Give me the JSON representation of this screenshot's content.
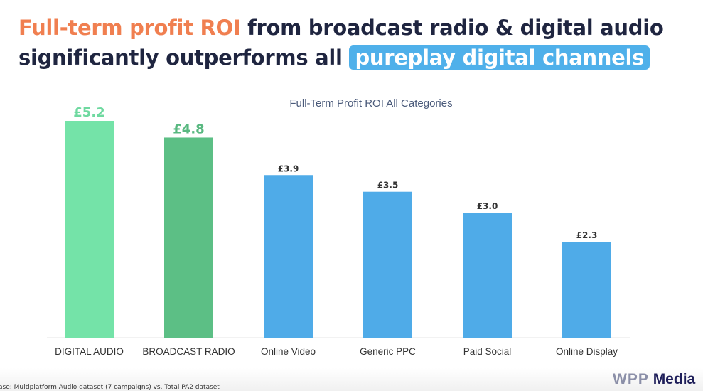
{
  "headline": {
    "accent": "Full-term profit ROI",
    "part1": " from broadcast radio & digital audio",
    "part2": "significantly outperforms all ",
    "highlight": "pureplay digital channels"
  },
  "colors": {
    "accent": "#f07f50",
    "text": "#1f2540",
    "highlight": "#4fb0ea",
    "digital_audio": "#74e3a8",
    "broadcast_radio": "#5cbf85",
    "digital_channels": "#4fabe8"
  },
  "chart_data": {
    "type": "bar",
    "title": "Full-Term Profit ROI All Categories",
    "categories": [
      "DIGITAL AUDIO",
      "BROADCAST RADIO",
      "Online Video",
      "Generic PPC",
      "Paid Social",
      "Online Display"
    ],
    "values": [
      5.2,
      4.8,
      3.9,
      3.5,
      3.0,
      2.3
    ],
    "data_labels": [
      "£5.2",
      "£4.8",
      "£3.9",
      "£3.5",
      "£3.0",
      "£2.3"
    ],
    "bar_colors": [
      "#74e3a8",
      "#5cbf85",
      "#4fabe8",
      "#4fabe8",
      "#4fabe8",
      "#4fabe8"
    ],
    "label_colors": [
      "#6fd9a0",
      "#58b880",
      "#333333",
      "#333333",
      "#333333",
      "#333333"
    ],
    "ylim": [
      0,
      5.2
    ],
    "grid": false,
    "xlabel": "",
    "ylabel": ""
  },
  "footnote": "ase: Multiplatform Audio dataset (7 campaigns) vs. Total PA2 dataset",
  "logo": {
    "part1": "WPP",
    "part2": "Media"
  }
}
